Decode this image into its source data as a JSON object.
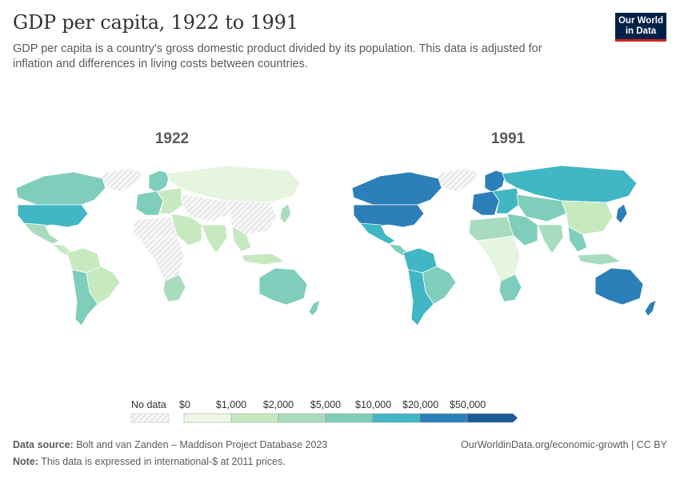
{
  "header": {
    "title": "GDP per capita, 1922 to 1991",
    "subtitle": "GDP per capita is a country's gross domestic product divided by its population. This data is adjusted for inflation and differences in living costs between countries.",
    "logo_line1": "Our World",
    "logo_line2": "in Data"
  },
  "maps": [
    {
      "label": "1922",
      "regions": {
        "canada": "#7fcdbb",
        "usa": "#41b6c4",
        "mexico": "#a9dcbf",
        "central_america": "#c7e9c0",
        "greenland": "nodata",
        "north_south_america": "#c7e9c0",
        "brazil": "#c7e9c0",
        "southern_cone": "#7fcdbb",
        "west_europe": "#7fcdbb",
        "scandinavia": "#7fcdbb",
        "east_europe": "#c7e9c0",
        "russia": "#e5f5e0",
        "middle_east": "#c7e9c0",
        "north_africa": "nodata",
        "central_africa": "nodata",
        "south_africa": "#a9dcbf",
        "central_asia": "nodata",
        "china": "nodata",
        "india": "#c7e9c0",
        "southeast_asia": "#c7e9c0",
        "japan": "#a9dcbf",
        "indonesia": "#c7e9c0",
        "australia": "#7fcdbb",
        "new_zealand": "#7fcdbb"
      }
    },
    {
      "label": "1991",
      "regions": {
        "canada": "#2c7fb8",
        "usa": "#2c7fb8",
        "mexico": "#41b6c4",
        "central_america": "#7fcdbb",
        "greenland": "nodata",
        "north_south_america": "#41b6c4",
        "brazil": "#7fcdbb",
        "southern_cone": "#41b6c4",
        "west_europe": "#2c7fb8",
        "scandinavia": "#2c7fb8",
        "east_europe": "#41b6c4",
        "russia": "#41b6c4",
        "middle_east": "#7fcdbb",
        "north_africa": "#a9dcbf",
        "central_africa": "#e5f5e0",
        "south_africa": "#7fcdbb",
        "central_asia": "#7fcdbb",
        "china": "#c7e9c0",
        "india": "#a9dcbf",
        "southeast_asia": "#7fcdbb",
        "japan": "#2c7fb8",
        "indonesia": "#a9dcbf",
        "australia": "#2c7fb8",
        "new_zealand": "#2c7fb8"
      }
    }
  ],
  "legend": {
    "nodata_label": "No data",
    "thresholds": [
      "$0",
      "$1,000",
      "$2,000",
      "$5,000",
      "$10,000",
      "$20,000",
      "$50,000"
    ],
    "colors": [
      "#edf8e9",
      "#c7e9c0",
      "#a9dcbf",
      "#7fcdbb",
      "#41b6c4",
      "#2c7fb8",
      "#1a5a96"
    ]
  },
  "footer": {
    "source_label": "Data source:",
    "source_text": "Bolt and van Zanden – Maddison Project Database 2023",
    "note_label": "Note:",
    "note_text": "This data is expressed in international-$ at 2011 prices.",
    "url_text": "OurWorldinData.org/economic-growth | CC BY"
  }
}
